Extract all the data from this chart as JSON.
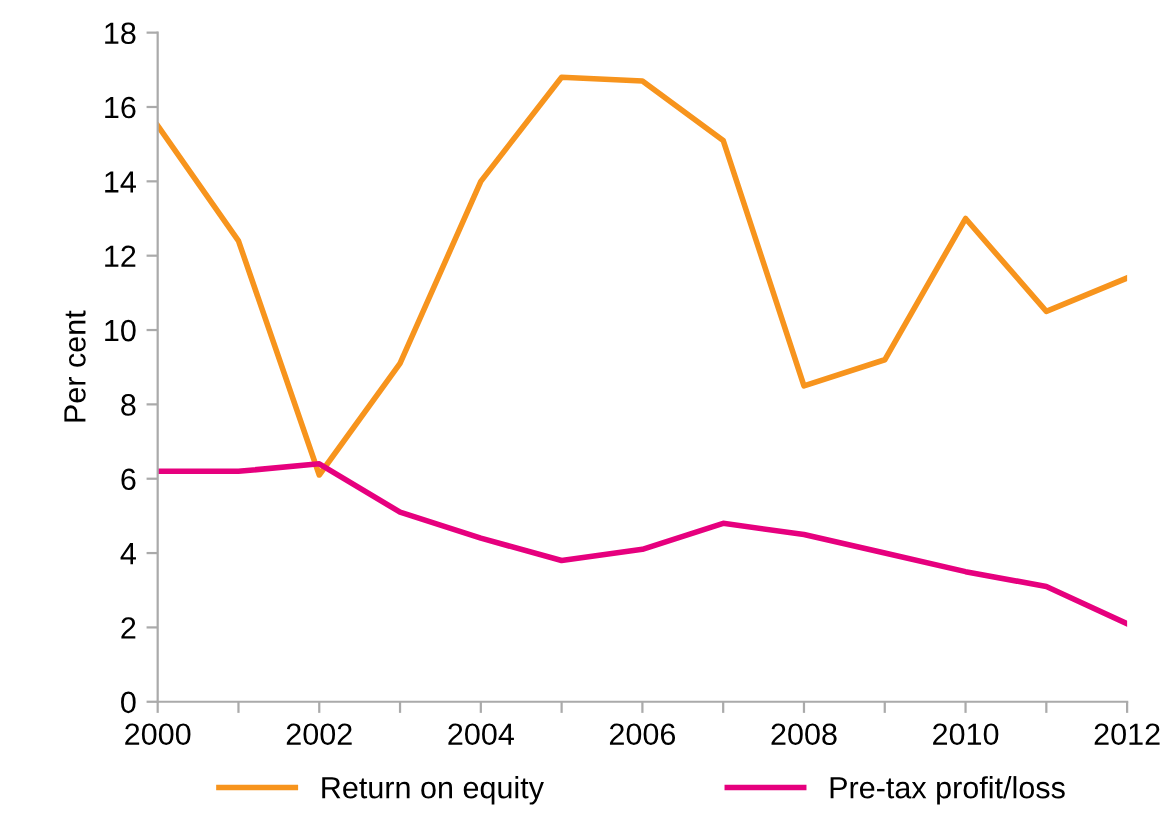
{
  "chart_data": {
    "type": "line",
    "ylabel": "Per cent",
    "x": [
      2000,
      2001,
      2002,
      2003,
      2004,
      2005,
      2006,
      2007,
      2008,
      2009,
      2010,
      2011,
      2012
    ],
    "series": [
      {
        "name": "Return on equity",
        "color": "#f7941d",
        "values": [
          15.5,
          12.4,
          6.1,
          9.1,
          14.0,
          16.8,
          16.7,
          15.1,
          8.5,
          9.2,
          13.0,
          10.5,
          11.4
        ]
      },
      {
        "name": "Pre-tax profit/loss",
        "color": "#e6007e",
        "values": [
          6.2,
          6.2,
          6.4,
          5.1,
          4.4,
          3.8,
          4.1,
          4.8,
          4.5,
          4.0,
          3.5,
          3.1,
          2.1
        ]
      }
    ],
    "xlim": [
      2000,
      2012
    ],
    "xticks": [
      2000,
      {
        "value": 2001,
        "label": null
      },
      2002,
      {
        "value": 2003,
        "label": null
      },
      2004,
      {
        "value": 2005,
        "label": null
      },
      2006,
      {
        "value": 2007,
        "label": null
      },
      2008,
      {
        "value": 2009,
        "label": null
      },
      2010,
      {
        "value": 2011,
        "label": null
      },
      2012
    ],
    "ylim": [
      0,
      18
    ],
    "yticks": [
      0,
      2,
      4,
      6,
      8,
      10,
      12,
      14,
      16,
      18
    ],
    "grid": false,
    "legend": "bottom",
    "marker": "none",
    "line_style": "solid"
  }
}
